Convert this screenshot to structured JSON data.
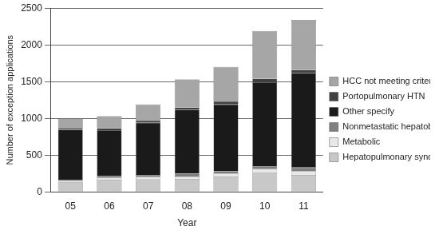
{
  "chart_data": {
    "type": "bar",
    "stacked": true,
    "x_label": "Year",
    "y_label": "Number of exception applications",
    "categories": [
      "05",
      "06",
      "07",
      "08",
      "09",
      "10",
      "11"
    ],
    "series": [
      {
        "name": "Hepatopulmonary syndrome",
        "color": "#c8c8c8",
        "values": [
          130,
          165,
          170,
          175,
          210,
          260,
          230
        ]
      },
      {
        "name": "Metabolic",
        "color": "#e8e8e8",
        "values": [
          20,
          25,
          30,
          35,
          40,
          50,
          50
        ]
      },
      {
        "name": "Nonmetastatic hepatoblastoma",
        "color": "#7f7f7f",
        "values": [
          15,
          30,
          30,
          40,
          30,
          40,
          50
        ]
      },
      {
        "name": "Other specify",
        "color": "#1a1a1a",
        "values": [
          680,
          620,
          710,
          870,
          910,
          1140,
          1290
        ]
      },
      {
        "name": "Portopulmonary HTN",
        "color": "#404040",
        "values": [
          25,
          25,
          30,
          30,
          40,
          50,
          40
        ]
      },
      {
        "name": "HCC not meeting criteria",
        "color": "#a6a6a6",
        "values": [
          120,
          165,
          220,
          380,
          470,
          650,
          680
        ]
      }
    ],
    "ylim": [
      0,
      2500
    ],
    "yticks": [
      0,
      500,
      1000,
      1500,
      2000,
      2500
    ],
    "grid": true,
    "legend": "right"
  }
}
